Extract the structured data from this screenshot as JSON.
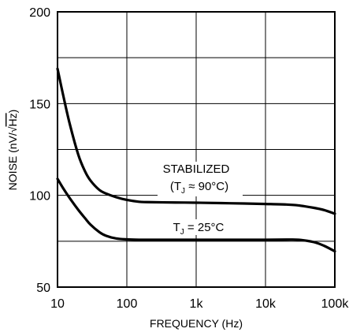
{
  "chart_data": {
    "type": "line",
    "xscale": "log",
    "xlim": [
      10,
      100000
    ],
    "ylim": [
      50,
      200
    ],
    "grid": true,
    "xlabel": "FREQUENCY (Hz)",
    "ylabel_parts": [
      "NOISE (nV/√",
      "Hz",
      ")"
    ],
    "x_ticks": [
      10,
      100,
      1000,
      10000,
      100000
    ],
    "x_tick_labels": [
      "10",
      "100",
      "1k",
      "10k",
      "100k"
    ],
    "y_ticks": [
      50,
      100,
      150,
      200
    ],
    "y_tick_labels": [
      "50",
      "100",
      "150",
      "200"
    ],
    "series": [
      {
        "name": "STABILIZED (TJ ≈ 90°C)",
        "label_line1": "STABILIZED",
        "label_line2": [
          "(T",
          "J",
          " ≈ 90°C)"
        ],
        "x": [
          10,
          12,
          15,
          20,
          25,
          30,
          40,
          50,
          70,
          100,
          150,
          200,
          500,
          1000,
          3000,
          10000,
          20000,
          30000,
          50000,
          70000,
          100000
        ],
        "y": [
          169,
          155,
          139,
          122,
          113,
          108,
          103,
          101,
          99,
          97.5,
          96.5,
          96.3,
          96.1,
          96,
          95.7,
          95.3,
          95,
          94.5,
          93.2,
          92,
          90
        ]
      },
      {
        "name": "TJ = 25°C",
        "label_parts": [
          "T",
          "J",
          " = 25°C"
        ],
        "x": [
          10,
          12,
          15,
          20,
          25,
          30,
          40,
          50,
          70,
          100,
          150,
          200,
          500,
          1000,
          3000,
          10000,
          20000,
          30000,
          50000,
          70000,
          100000
        ],
        "y": [
          109,
          104,
          98.5,
          92,
          87.5,
          84,
          80,
          78,
          76.5,
          76,
          75.8,
          75.8,
          75.8,
          75.8,
          75.8,
          75.8,
          75.9,
          75.8,
          74.5,
          72.5,
          69.5
        ]
      }
    ]
  }
}
